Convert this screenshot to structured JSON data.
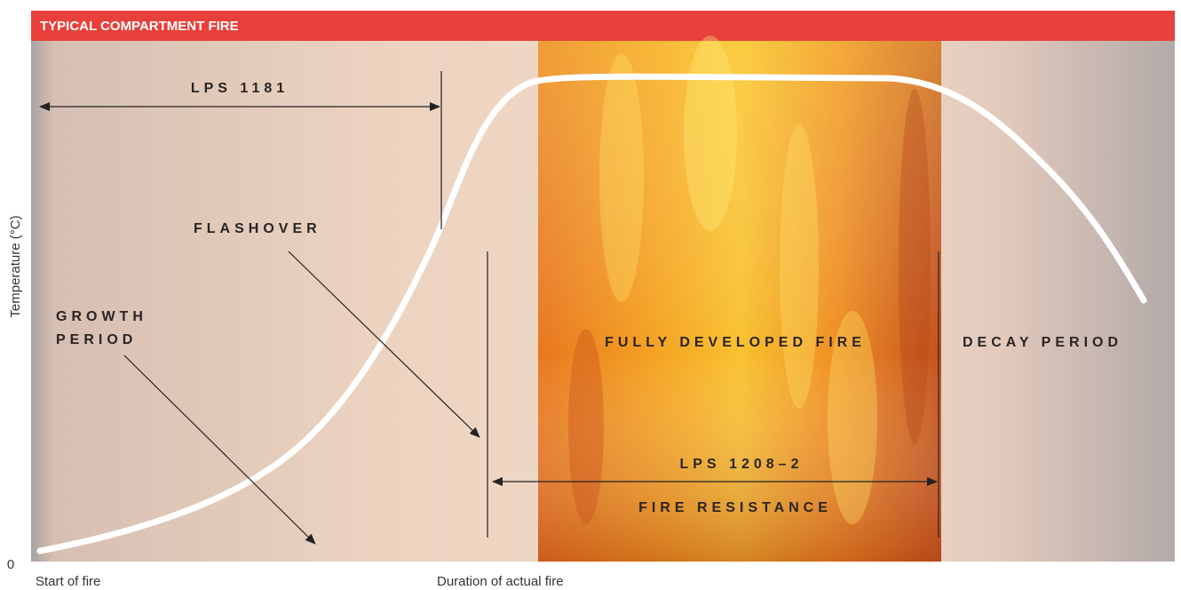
{
  "header": {
    "title": "TYPICAL COMPARTMENT FIRE"
  },
  "axis": {
    "y_label": "Temperature (°C)",
    "origin": "0",
    "x_start": "Start of fire",
    "x_end": "Duration of actual fire"
  },
  "labels": {
    "lps_1181": "LPS 1181",
    "flashover": "FLASHOVER",
    "growth_line1": "GROWTH",
    "growth_line2": "PERIOD",
    "fully_developed": "FULLY DEVELOPED FIRE",
    "decay": "DECAY PERIOD",
    "lps_1208": "LPS 1208–2",
    "fire_resistance": "FIRE RESISTANCE"
  }
}
